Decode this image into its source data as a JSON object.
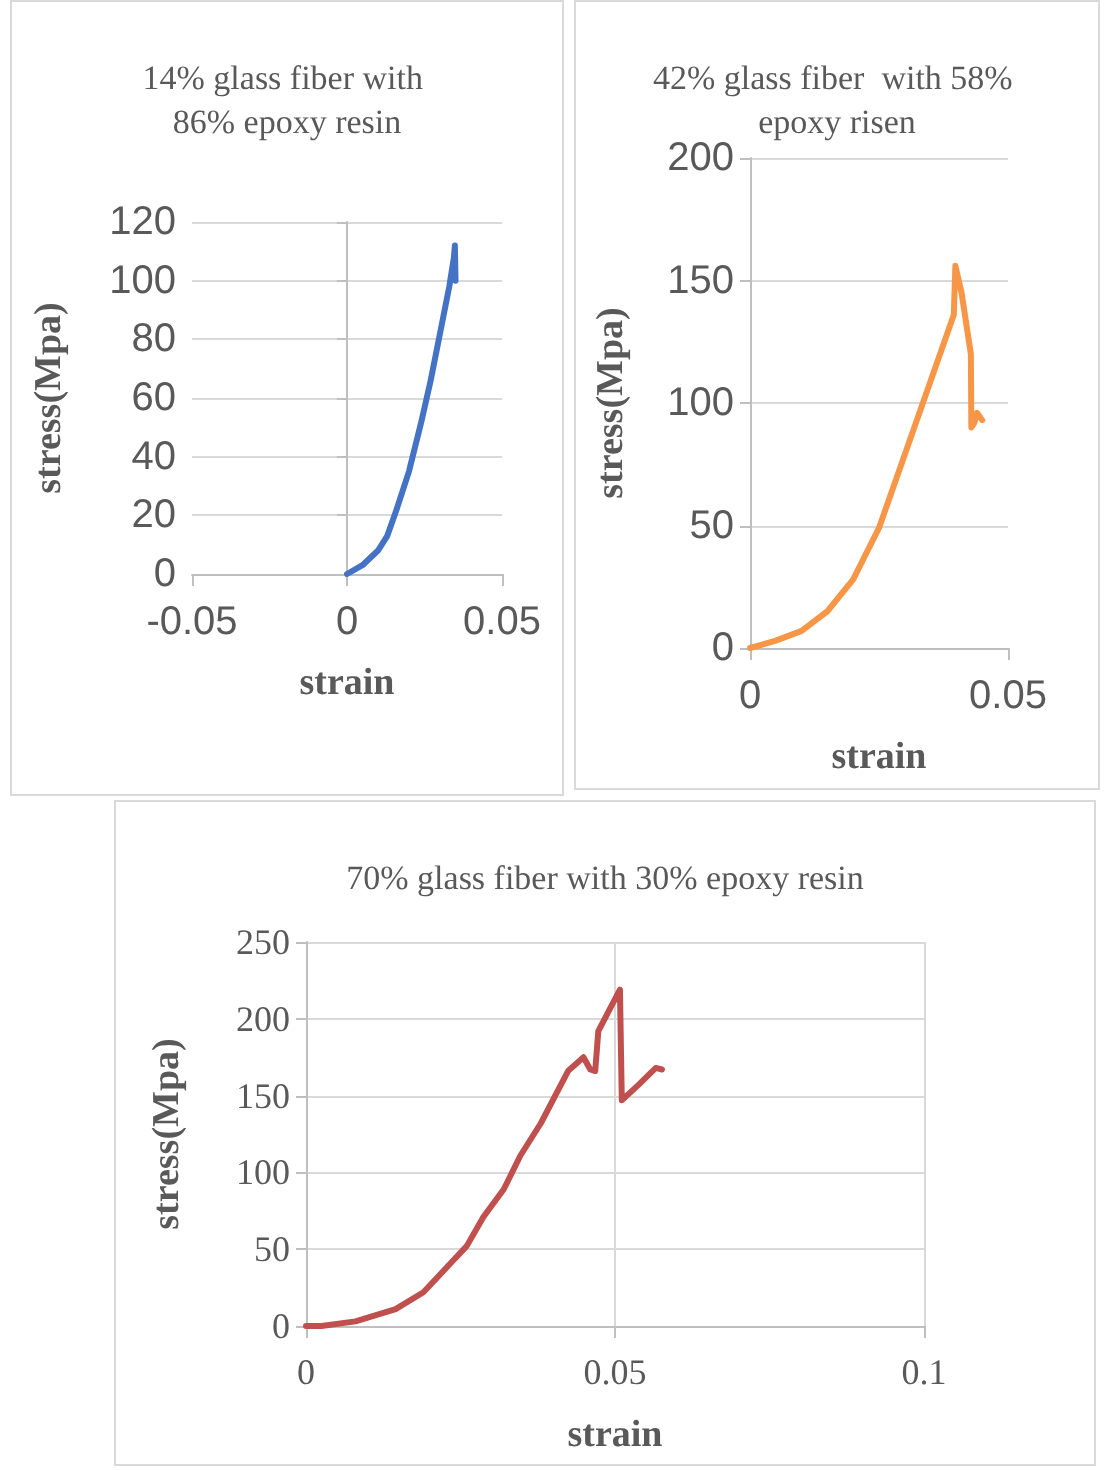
{
  "chart_data": [
    {
      "type": "line",
      "title": "14% glass fiber with 86% epoxy resin",
      "xlabel": "strain",
      "ylabel": "stress(Mpa)",
      "xlim": [
        -0.05,
        0.05
      ],
      "xticks": [
        -0.05,
        0,
        0.05
      ],
      "ylim": [
        0,
        120
      ],
      "yticks": [
        0,
        20,
        40,
        60,
        80,
        100,
        120
      ],
      "grid": "y",
      "series": [
        {
          "color": "#4472c4",
          "x": [
            0,
            0.005,
            0.01,
            0.013,
            0.016,
            0.02,
            0.024,
            0.027,
            0.03,
            0.033,
            0.0345,
            0.0348,
            0.035
          ],
          "values": [
            0,
            3,
            8,
            13,
            22,
            35,
            52,
            66,
            82,
            98,
            108,
            112,
            100
          ]
        }
      ]
    },
    {
      "type": "line",
      "title": "42% glass fiber  with 58% epoxy risen",
      "xlabel": "strain",
      "ylabel": "stress(Mpa)",
      "xlim": [
        0,
        0.05
      ],
      "xticks": [
        0,
        0.05
      ],
      "ylim": [
        0,
        200
      ],
      "yticks": [
        0,
        50,
        100,
        150,
        200
      ],
      "grid": "y",
      "series": [
        {
          "color": "#f79646",
          "x": [
            0,
            0.005,
            0.01,
            0.015,
            0.02,
            0.025,
            0.03,
            0.035,
            0.0395,
            0.0398,
            0.041,
            0.0428,
            0.0429,
            0.0435,
            0.044,
            0.045
          ],
          "values": [
            0,
            3,
            7,
            15,
            28,
            49,
            79,
            109,
            136,
            156,
            145,
            120,
            90,
            92,
            96,
            93
          ]
        }
      ]
    },
    {
      "type": "line",
      "title": "70% glass fiber with 30% epoxy resin",
      "xlabel": "strain",
      "ylabel": "stress(Mpa)",
      "xlim": [
        0,
        0.1
      ],
      "xticks": [
        0,
        0.05,
        0.1
      ],
      "ylim": [
        0,
        250
      ],
      "yticks": [
        0,
        50,
        100,
        150,
        200,
        250
      ],
      "grid": true,
      "series": [
        {
          "color": "#c0504d",
          "x": [
            0,
            0.0025,
            0.008,
            0.0145,
            0.019,
            0.0232,
            0.026,
            0.0287,
            0.032,
            0.0347,
            0.038,
            0.0424,
            0.0449,
            0.046,
            0.0468,
            0.0473,
            0.0508,
            0.0511,
            0.0538,
            0.0566,
            0.0576
          ],
          "values": [
            0,
            0,
            3,
            11,
            22,
            40,
            52,
            71,
            89,
            111,
            132,
            166,
            175,
            167,
            166,
            192,
            219,
            147,
            157,
            168,
            167
          ]
        }
      ]
    }
  ]
}
